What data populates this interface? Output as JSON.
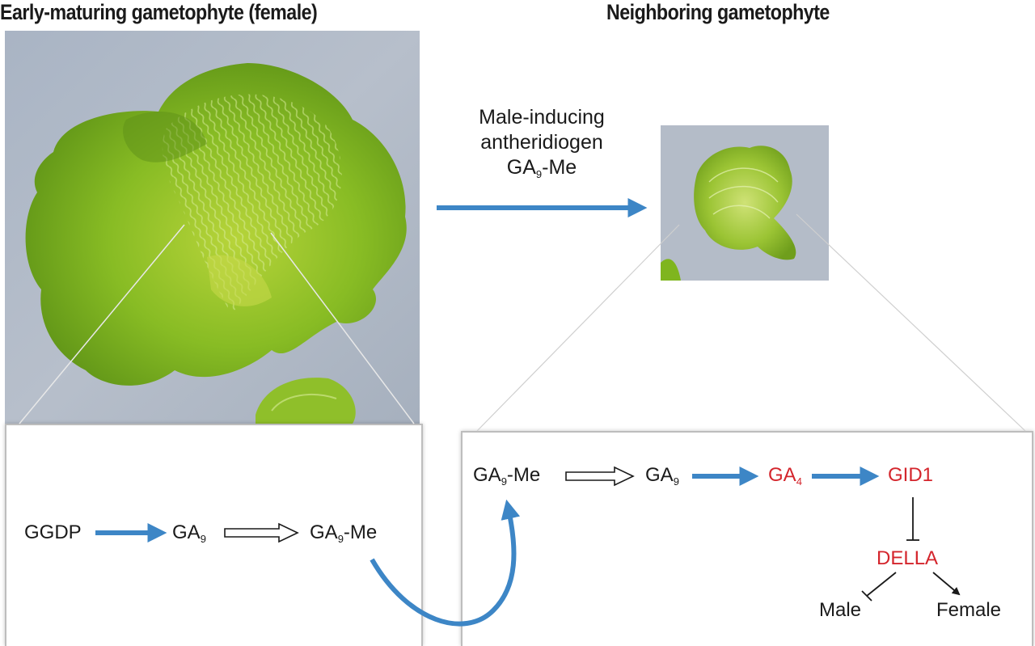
{
  "headings": {
    "left": "Early-maturing gametophyte (female)",
    "right": "Neighboring gametophyte"
  },
  "caption": {
    "line1": "Male-inducing",
    "line2": "antheridiogen",
    "line3_main": "GA",
    "line3_sub": "9",
    "line3_suffix": "-Me"
  },
  "left_pathway": {
    "ggdp": "GGDP",
    "ga9": {
      "main": "GA",
      "sub": "9"
    },
    "ga9me": {
      "main": "GA",
      "sub": "9",
      "suffix": "-Me"
    }
  },
  "right_pathway": {
    "ga9me": {
      "main": "GA",
      "sub": "9",
      "suffix": "-Me"
    },
    "ga9": {
      "main": "GA",
      "sub": "9"
    },
    "ga4": {
      "main": "GA",
      "sub": "4"
    },
    "gid1": "GID1",
    "della": "DELLA",
    "male": "Male",
    "female": "Female"
  },
  "colors": {
    "blue_arrow": "#3d86c6",
    "red_text": "#d4252c",
    "thallus_green": "#7fb51e",
    "photo_background": "#aeb8c6"
  }
}
